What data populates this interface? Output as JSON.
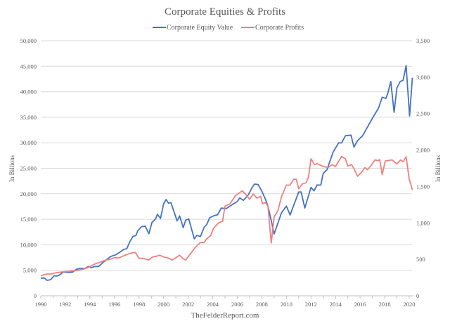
{
  "chart_data": {
    "type": "line",
    "title": "Corporate Equities & Profits",
    "footer": "TheFelderReport.com",
    "legend_position": "top",
    "grid": true,
    "xlim": [
      1990,
      2020
    ],
    "x_ticks": [
      "1990",
      "1992",
      "1994",
      "1996",
      "1998",
      "2000",
      "2002",
      "2004",
      "2006",
      "2008",
      "2010",
      "2012",
      "2014",
      "2016",
      "2018",
      "2020"
    ],
    "y_left": {
      "label": "In Billions",
      "lim": [
        0,
        50000
      ],
      "ticks": [
        "0",
        "5,000",
        "10,000",
        "15,000",
        "20,000",
        "25,000",
        "30,000",
        "35,000",
        "40,000",
        "45,000",
        "50,000"
      ]
    },
    "y_right": {
      "label": "In Billions",
      "lim": [
        0,
        3500
      ],
      "ticks": [
        "0",
        "500",
        "1,000",
        "1,500",
        "2,000",
        "2,500",
        "3,000",
        "3,500"
      ]
    },
    "series": [
      {
        "name": "Corporate Equity Value",
        "axis": "left",
        "color": "#4472C4",
        "points": [
          [
            1990.0,
            3440
          ],
          [
            1990.3,
            3480
          ],
          [
            1990.5,
            3030
          ],
          [
            1990.8,
            3160
          ],
          [
            1991.07,
            3900
          ],
          [
            1991.35,
            3900
          ],
          [
            1991.6,
            4180
          ],
          [
            1991.8,
            4640
          ],
          [
            1992.3,
            4600
          ],
          [
            1992.6,
            4640
          ],
          [
            1992.9,
            5190
          ],
          [
            1993.2,
            5370
          ],
          [
            1993.6,
            5370
          ],
          [
            1993.9,
            5780
          ],
          [
            1994.1,
            5510
          ],
          [
            1994.4,
            5740
          ],
          [
            1994.7,
            5740
          ],
          [
            1995.07,
            6560
          ],
          [
            1995.45,
            7250
          ],
          [
            1995.7,
            7710
          ],
          [
            1996.1,
            8030
          ],
          [
            1996.5,
            8630
          ],
          [
            1996.75,
            9090
          ],
          [
            1997.0,
            9230
          ],
          [
            1997.27,
            10700
          ],
          [
            1997.5,
            11610
          ],
          [
            1997.75,
            11840
          ],
          [
            1997.9,
            12770
          ],
          [
            1998.2,
            13540
          ],
          [
            1998.5,
            13680
          ],
          [
            1998.8,
            12170
          ],
          [
            1999.05,
            14370
          ],
          [
            1999.35,
            15060
          ],
          [
            1999.5,
            15980
          ],
          [
            1999.75,
            15150
          ],
          [
            2000.0,
            18040
          ],
          [
            2000.2,
            18870
          ],
          [
            2000.4,
            18140
          ],
          [
            2000.6,
            18270
          ],
          [
            2001.1,
            14690
          ],
          [
            2001.3,
            15660
          ],
          [
            2001.6,
            13360
          ],
          [
            2001.8,
            14830
          ],
          [
            2002.05,
            15060
          ],
          [
            2002.5,
            11160
          ],
          [
            2002.7,
            11840
          ],
          [
            2003.0,
            11610
          ],
          [
            2003.3,
            13450
          ],
          [
            2003.5,
            13910
          ],
          [
            2003.75,
            15290
          ],
          [
            2004.1,
            15700
          ],
          [
            2004.4,
            15900
          ],
          [
            2004.7,
            17200
          ],
          [
            2005.1,
            17100
          ],
          [
            2005.76,
            18130
          ],
          [
            2006.0,
            18500
          ],
          [
            2006.2,
            19200
          ],
          [
            2006.5,
            18700
          ],
          [
            2006.9,
            19800
          ],
          [
            2007.2,
            21200
          ],
          [
            2007.4,
            21900
          ],
          [
            2007.7,
            21800
          ],
          [
            2008.0,
            20500
          ],
          [
            2008.3,
            18900
          ],
          [
            2008.5,
            17590
          ],
          [
            2008.8,
            14370
          ],
          [
            2009.0,
            12120
          ],
          [
            2009.6,
            16250
          ],
          [
            2010.0,
            17590
          ],
          [
            2010.3,
            15840
          ],
          [
            2011.0,
            20340
          ],
          [
            2011.2,
            20340
          ],
          [
            2011.5,
            17200
          ],
          [
            2012.0,
            21260
          ],
          [
            2012.25,
            20570
          ],
          [
            2012.5,
            21720
          ],
          [
            2012.8,
            21700
          ],
          [
            2013.0,
            24010
          ],
          [
            2013.3,
            24700
          ],
          [
            2013.8,
            28140
          ],
          [
            2014.25,
            29980
          ],
          [
            2014.5,
            29980
          ],
          [
            2014.8,
            31360
          ],
          [
            2015.26,
            31500
          ],
          [
            2015.5,
            29160
          ],
          [
            2015.8,
            30440
          ],
          [
            2016.2,
            31360
          ],
          [
            2017.0,
            34800
          ],
          [
            2017.5,
            36780
          ],
          [
            2017.8,
            38940
          ],
          [
            2018.1,
            38700
          ],
          [
            2018.26,
            39720
          ],
          [
            2018.5,
            42010
          ],
          [
            2018.77,
            35950
          ],
          [
            2019.0,
            40770
          ],
          [
            2019.27,
            42010
          ],
          [
            2019.5,
            42240
          ],
          [
            2019.75,
            45140
          ],
          [
            2020.03,
            35260
          ],
          [
            2020.26,
            42740
          ]
        ]
      },
      {
        "name": "Corporate Profits",
        "axis": "right",
        "color": "#F08080",
        "points": [
          [
            1990.0,
            276
          ],
          [
            1990.5,
            299
          ],
          [
            1990.9,
            299
          ],
          [
            1991.2,
            315
          ],
          [
            1991.6,
            324
          ],
          [
            1992.3,
            337
          ],
          [
            1992.9,
            347
          ],
          [
            1993.4,
            363
          ],
          [
            1993.8,
            385
          ],
          [
            1994.1,
            411
          ],
          [
            1994.5,
            443
          ],
          [
            1994.9,
            466
          ],
          [
            1995.3,
            491
          ],
          [
            1995.6,
            498
          ],
          [
            1996.0,
            523
          ],
          [
            1996.4,
            523
          ],
          [
            1996.75,
            549
          ],
          [
            1997.1,
            572
          ],
          [
            1997.4,
            588
          ],
          [
            1997.7,
            594
          ],
          [
            1998.0,
            514
          ],
          [
            1998.3,
            514
          ],
          [
            1998.8,
            491
          ],
          [
            1999.1,
            533
          ],
          [
            1999.4,
            543
          ],
          [
            1999.7,
            556
          ],
          [
            2000.0,
            533
          ],
          [
            2000.4,
            517
          ],
          [
            2000.7,
            491
          ],
          [
            2001.0,
            523
          ],
          [
            2001.3,
            556
          ],
          [
            2001.6,
            507
          ],
          [
            2001.8,
            491
          ],
          [
            2002.1,
            556
          ],
          [
            2002.6,
            668
          ],
          [
            2003.0,
            732
          ],
          [
            2003.3,
            732
          ],
          [
            2003.5,
            780
          ],
          [
            2003.85,
            828
          ],
          [
            2004.05,
            925
          ],
          [
            2004.5,
            1005
          ],
          [
            2004.8,
            1020
          ],
          [
            2005.0,
            1230
          ],
          [
            2005.4,
            1260
          ],
          [
            2005.86,
            1375
          ],
          [
            2006.4,
            1440
          ],
          [
            2006.7,
            1390
          ],
          [
            2007.0,
            1326
          ],
          [
            2007.3,
            1397
          ],
          [
            2007.6,
            1340
          ],
          [
            2007.9,
            1365
          ],
          [
            2008.05,
            1262
          ],
          [
            2008.3,
            1280
          ],
          [
            2008.5,
            1230
          ],
          [
            2008.77,
            725
          ],
          [
            2009.0,
            1085
          ],
          [
            2009.3,
            1165
          ],
          [
            2009.6,
            1358
          ],
          [
            2010.0,
            1520
          ],
          [
            2010.3,
            1520
          ],
          [
            2010.6,
            1600
          ],
          [
            2010.8,
            1600
          ],
          [
            2011.0,
            1470
          ],
          [
            2011.3,
            1535
          ],
          [
            2011.6,
            1550
          ],
          [
            2011.8,
            1630
          ],
          [
            2012.0,
            1880
          ],
          [
            2012.3,
            1800
          ],
          [
            2012.5,
            1815
          ],
          [
            2013.0,
            1775
          ],
          [
            2013.4,
            1760
          ],
          [
            2013.7,
            1800
          ],
          [
            2014.0,
            1775
          ],
          [
            2014.5,
            1913
          ],
          [
            2014.8,
            1880
          ],
          [
            2015.0,
            1780
          ],
          [
            2015.3,
            1800
          ],
          [
            2015.5,
            1745
          ],
          [
            2015.8,
            1640
          ],
          [
            2016.1,
            1690
          ],
          [
            2016.4,
            1760
          ],
          [
            2016.6,
            1730
          ],
          [
            2016.9,
            1790
          ],
          [
            2017.2,
            1865
          ],
          [
            2017.5,
            1855
          ],
          [
            2017.6,
            1870
          ],
          [
            2017.8,
            1663
          ],
          [
            2018.05,
            1850
          ],
          [
            2018.6,
            1865
          ],
          [
            2019.0,
            1810
          ],
          [
            2019.3,
            1865
          ],
          [
            2019.5,
            1840
          ],
          [
            2019.75,
            1907
          ],
          [
            2020.0,
            1600
          ],
          [
            2020.26,
            1455
          ]
        ]
      }
    ]
  }
}
